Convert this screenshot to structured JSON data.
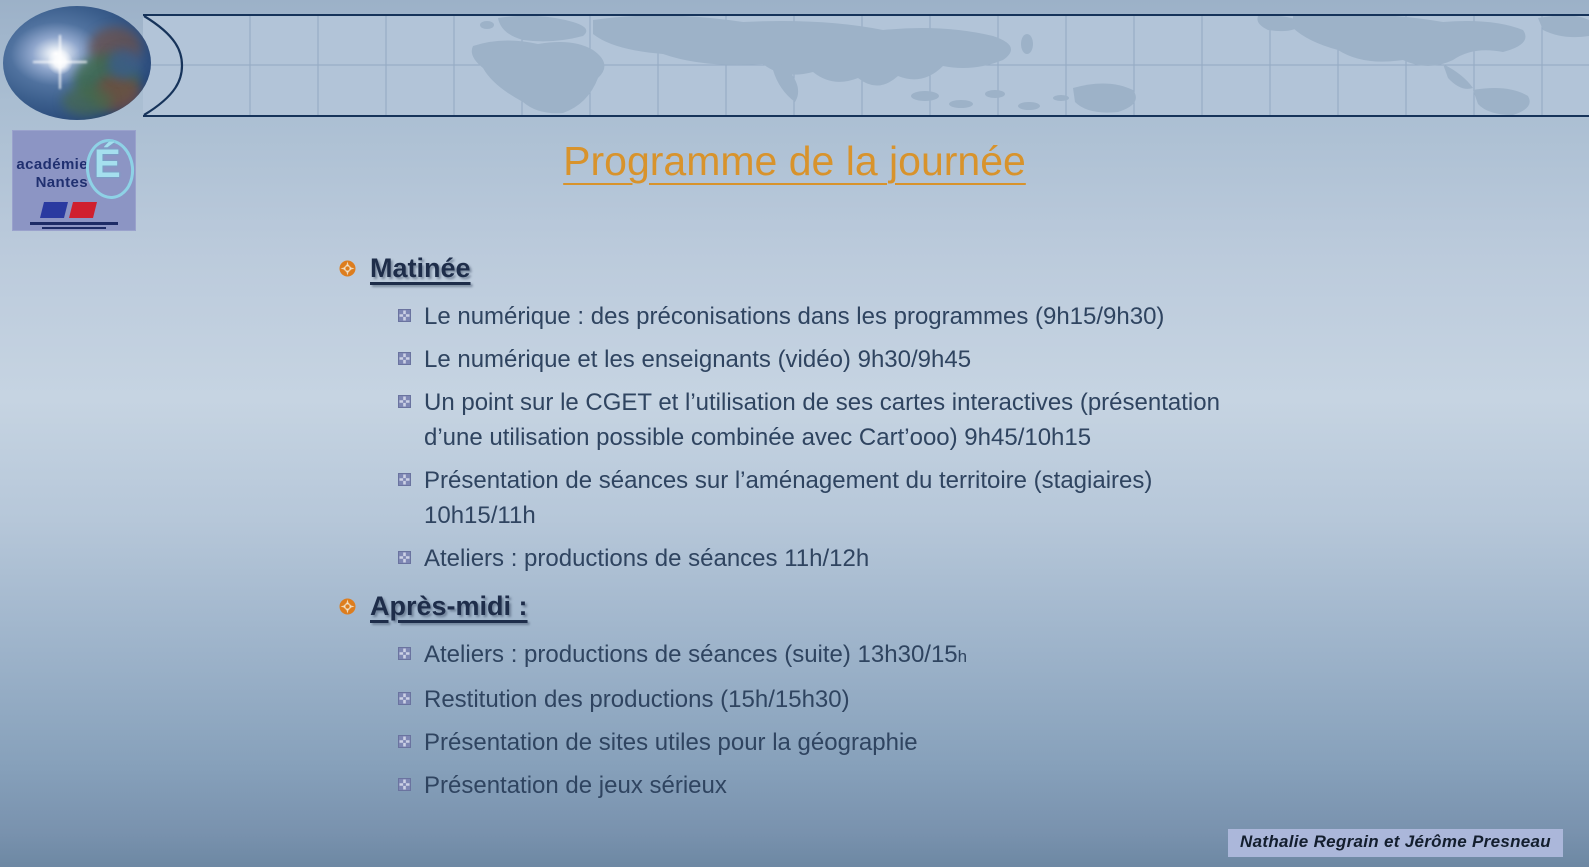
{
  "page": {
    "title": "Programme de la journée",
    "footer_credit": "Nathalie Regrain et Jérôme Presneau"
  },
  "logo": {
    "org_line1": "académie",
    "org_line2": "Nantes",
    "emblem_letter": "É"
  },
  "program": {
    "sections": [
      {
        "heading": "Matinée",
        "items": [
          {
            "lines": [
              "Le numérique : des préconisations dans les programmes (9h15/9h30)"
            ]
          },
          {
            "lines": [
              "Le numérique et les enseignants (vidéo) 9h30/9h45"
            ]
          },
          {
            "lines": [
              "Un point sur le CGET et l’utilisation de ses cartes interactives (présentation",
              "d’une utilisation possible combinée avec Cart’ooo) 9h45/10h15"
            ]
          },
          {
            "lines": [
              "Présentation de séances sur l’aménagement du territoire (stagiaires)",
              "10h15/11h"
            ]
          },
          {
            "lines": [
              "Ateliers : productions de séances 11h/12h"
            ]
          }
        ]
      },
      {
        "heading": "Après-midi :",
        "items": [
          {
            "lines": [
              "Ateliers : productions de séances (suite) 13h30/15"
            ],
            "small_suffix": "h"
          },
          {
            "lines": [
              "Restitution des productions (15h/15h30)"
            ]
          },
          {
            "lines": [
              "Présentation de sites utiles pour la géographie"
            ]
          },
          {
            "lines": [
              "Présentation de jeux sérieux"
            ]
          }
        ]
      }
    ]
  },
  "colors": {
    "title": "#d8932c",
    "heading": "#1e2d4a",
    "body": "#2f4460",
    "bullet_primary": "#dd7d1e",
    "bullet_secondary": "#7e87b4",
    "footer_bg": "#abb7da",
    "band_bg": "#b2c4d8",
    "band_land": "#9db2c8",
    "band_border": "#16335a"
  }
}
